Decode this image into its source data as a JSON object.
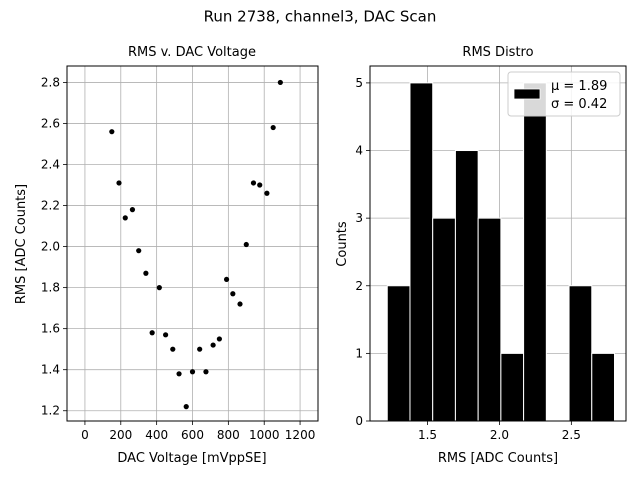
{
  "suptitle": "Run 2738, channel3, DAC Scan",
  "chart_data": [
    {
      "type": "scatter",
      "title": "RMS v. DAC Voltage",
      "xlabel": "DAC Voltage [mVppSE]",
      "ylabel": "RMS [ADC Counts]",
      "xlim": [
        -100,
        1300
      ],
      "ylim": [
        1.15,
        2.88
      ],
      "xticks": [
        0,
        200,
        400,
        600,
        800,
        1000,
        1200
      ],
      "yticks": [
        1.2,
        1.4,
        1.6,
        1.8,
        2.0,
        2.2,
        2.4,
        2.6,
        2.8
      ],
      "ytick_labels": [
        "1.2",
        "1.4",
        "1.6",
        "1.8",
        "2.0",
        "2.2",
        "2.4",
        "2.6",
        "2.8"
      ],
      "grid": true,
      "color": "#000000",
      "points": [
        {
          "x": 150,
          "y": 2.56
        },
        {
          "x": 190,
          "y": 2.31
        },
        {
          "x": 225,
          "y": 2.14
        },
        {
          "x": 265,
          "y": 2.18
        },
        {
          "x": 300,
          "y": 1.98
        },
        {
          "x": 340,
          "y": 1.87
        },
        {
          "x": 375,
          "y": 1.58
        },
        {
          "x": 415,
          "y": 1.8
        },
        {
          "x": 450,
          "y": 1.57
        },
        {
          "x": 490,
          "y": 1.5
        },
        {
          "x": 525,
          "y": 1.38
        },
        {
          "x": 565,
          "y": 1.22
        },
        {
          "x": 600,
          "y": 1.39
        },
        {
          "x": 640,
          "y": 1.5
        },
        {
          "x": 675,
          "y": 1.39
        },
        {
          "x": 715,
          "y": 1.52
        },
        {
          "x": 750,
          "y": 1.55
        },
        {
          "x": 790,
          "y": 1.84
        },
        {
          "x": 825,
          "y": 1.77
        },
        {
          "x": 865,
          "y": 1.72
        },
        {
          "x": 900,
          "y": 2.01
        },
        {
          "x": 940,
          "y": 2.31
        },
        {
          "x": 975,
          "y": 2.3
        },
        {
          "x": 1015,
          "y": 2.26
        },
        {
          "x": 1050,
          "y": 2.58
        },
        {
          "x": 1090,
          "y": 2.8
        }
      ]
    },
    {
      "type": "bar",
      "title": "RMS Distro",
      "xlabel": "RMS [ADC Counts]",
      "ylabel": "Counts",
      "xlim": [
        1.1,
        2.88
      ],
      "ylim": [
        0,
        5.25
      ],
      "xticks": [
        1.5,
        2.0,
        2.5
      ],
      "xtick_labels": [
        "1.5",
        "2.0",
        "2.5"
      ],
      "yticks": [
        0,
        1,
        2,
        3,
        4,
        5
      ],
      "grid": true,
      "bar_color": "#000000",
      "edge_color": "#ffffff",
      "bins": [
        {
          "x0": 1.22,
          "x1": 1.378,
          "value": 2
        },
        {
          "x0": 1.378,
          "x1": 1.536,
          "value": 5
        },
        {
          "x0": 1.536,
          "x1": 1.694,
          "value": 3
        },
        {
          "x0": 1.694,
          "x1": 1.852,
          "value": 4
        },
        {
          "x0": 1.852,
          "x1": 2.01,
          "value": 3
        },
        {
          "x0": 2.01,
          "x1": 2.168,
          "value": 1
        },
        {
          "x0": 2.168,
          "x1": 2.326,
          "value": 5
        },
        {
          "x0": 2.326,
          "x1": 2.484,
          "value": 0
        },
        {
          "x0": 2.484,
          "x1": 2.642,
          "value": 2
        },
        {
          "x0": 2.642,
          "x1": 2.8,
          "value": 1
        }
      ],
      "legend": {
        "position": "upper right",
        "line1": "μ = 1.89",
        "line2": "σ = 0.42"
      }
    }
  ]
}
